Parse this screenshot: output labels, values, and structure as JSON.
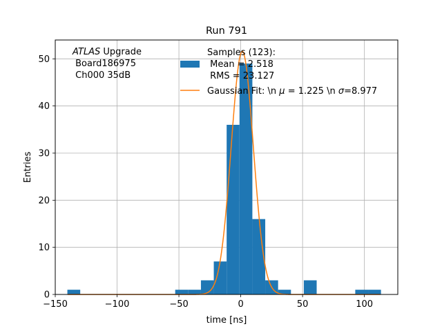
{
  "chart_data": {
    "type": "bar",
    "title": "Run 791",
    "xlabel": "time [ns]",
    "ylabel": "Entries",
    "xlim": [
      -150,
      127
    ],
    "ylim": [
      0,
      54
    ],
    "xticks": [
      -150,
      -100,
      -50,
      0,
      50,
      100
    ],
    "xtick_labels": [
      "−150",
      "−100",
      "−50",
      "0",
      "50",
      "100"
    ],
    "yticks": [
      0,
      10,
      20,
      30,
      40,
      50
    ],
    "ytick_labels": [
      "0",
      "10",
      "20",
      "30",
      "40",
      "50"
    ],
    "grid": true,
    "bar_color": "#1f77b4",
    "fit_color": "#ff7f0e",
    "histogram": {
      "name": "Samples (123):\n Mean = 2.518\n RMS = 23.127",
      "bin_width": 10.4,
      "bins": [
        {
          "x0": -140.2,
          "count": 1
        },
        {
          "x0": -53.0,
          "count": 1
        },
        {
          "x0": -42.6,
          "count": 1
        },
        {
          "x0": -32.2,
          "count": 3
        },
        {
          "x0": -21.8,
          "count": 7
        },
        {
          "x0": -11.4,
          "count": 36
        },
        {
          "x0": -1.0,
          "count": 49
        },
        {
          "x0": 9.4,
          "count": 16
        },
        {
          "x0": 19.8,
          "count": 3
        },
        {
          "x0": 30.2,
          "count": 1
        },
        {
          "x0": 51.0,
          "count": 3
        },
        {
          "x0": 92.6,
          "count": 1
        },
        {
          "x0": 103.0,
          "count": 1
        }
      ]
    },
    "fit": {
      "name": "Gaussian Fit: \\n $\\mu$ = 1.225 \\n $\\sigma$=8.977",
      "name_parts": [
        "Gaussian Fit: \\n ",
        "μ",
        " = 1.225 \\n ",
        "σ",
        "=8.977"
      ],
      "amplitude": 51.6,
      "mu": 1.225,
      "sigma": 8.977,
      "x_range": [
        -140,
        113
      ]
    },
    "annotation": {
      "line1_italic": "ATLAS",
      "line1_rest": " Upgrade",
      "line2": " Board186975",
      "line3": " Ch000 35dB"
    },
    "legend": {
      "placement": "top-right",
      "hist_lines": [
        "Samples (123):",
        " Mean = 2.518",
        " RMS = 23.127"
      ]
    }
  }
}
